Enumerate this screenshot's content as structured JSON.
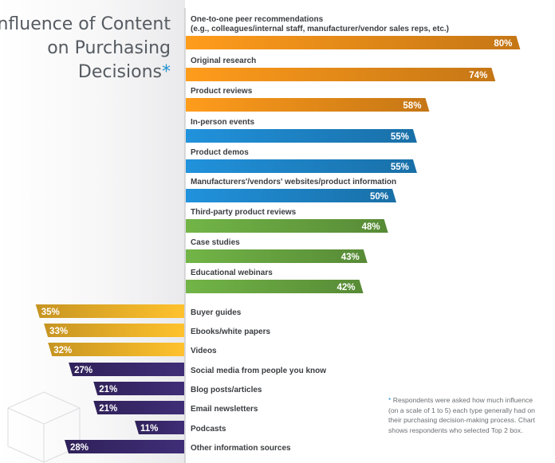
{
  "title": {
    "line1": "Influence of Content",
    "line2": "on Purchasing",
    "line3": "Decisions",
    "marker": "*"
  },
  "footnote": {
    "marker": "*",
    "text": "Respondents were asked how much influence (on a scale of 1 to 5) each type generally had on their purchasing decision-making process. Chart shows respondents who selected Top 2 box."
  },
  "colors": {
    "orange": "#f0901a",
    "blue": "#1f87cc",
    "green": "#6aa842",
    "yellow": "#f2b42a",
    "purple": "#3a2a6e"
  },
  "chart_data": {
    "type": "bar",
    "orientation": "horizontal",
    "value_unit": "%",
    "xlim": [
      0,
      100
    ],
    "groups": [
      {
        "name": "orange",
        "direction": "right",
        "color": "#f0901a",
        "items": [
          {
            "label": "One-to-one peer recommendations",
            "sublabel": "(e.g., colleagues/internal staff, manufacturer/vendor sales reps, etc.)",
            "value": 80
          },
          {
            "label": "Original research",
            "value": 74
          },
          {
            "label": "Product reviews",
            "value": 58
          }
        ]
      },
      {
        "name": "blue",
        "direction": "right",
        "color": "#1f87cc",
        "items": [
          {
            "label": "In-person events",
            "value": 55
          },
          {
            "label": "Product demos",
            "value": 55
          },
          {
            "label": "Manufacturers'/vendors' websites/product information",
            "value": 50
          }
        ]
      },
      {
        "name": "green",
        "direction": "right",
        "color": "#6aa842",
        "items": [
          {
            "label": "Third-party product reviews",
            "value": 48
          },
          {
            "label": "Case studies",
            "value": 43
          },
          {
            "label": "Educational webinars",
            "value": 42
          }
        ]
      },
      {
        "name": "yellow",
        "direction": "left",
        "color": "#f2b42a",
        "items": [
          {
            "label": "Buyer guides",
            "value": 35
          },
          {
            "label": "Ebooks/white papers",
            "value": 33
          },
          {
            "label": "Videos",
            "value": 32
          }
        ]
      },
      {
        "name": "purple",
        "direction": "left",
        "color": "#3a2a6e",
        "items": [
          {
            "label": "Social media from people you know",
            "value": 27
          },
          {
            "label": "Blog posts/articles",
            "value": 21
          },
          {
            "label": "Email newsletters",
            "value": 21
          },
          {
            "label": "Podcasts",
            "value": 11
          },
          {
            "label": "Other information sources",
            "value": 28
          }
        ]
      }
    ]
  }
}
